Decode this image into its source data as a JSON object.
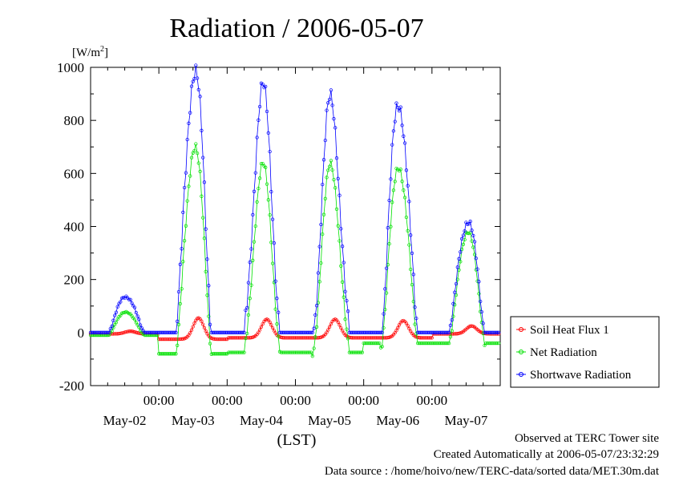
{
  "chart_data": {
    "type": "line",
    "title": "Radiation / 2006-05-07",
    "ylabel_unit": "[W/m",
    "ylabel_sup": "2",
    "ylabel_close": "]",
    "xlabel": "(LST)",
    "ylim": [
      -200,
      1000
    ],
    "yticks": [
      "1000",
      "800",
      "600",
      "400",
      "200",
      "0",
      "-200"
    ],
    "ytick_values": [
      1000,
      800,
      600,
      400,
      200,
      0,
      -200
    ],
    "xlim_days": [
      0,
      6
    ],
    "x_time_labels": [
      "00:00",
      "00:00",
      "00:00",
      "00:00",
      "00:00"
    ],
    "x_date_labels": [
      "May-02",
      "May-03",
      "May-04",
      "May-05",
      "May-06",
      "May-07"
    ],
    "grid": false,
    "legend_position": "bottom-right-outside",
    "series": [
      {
        "name": "Soil Heat Flux 1",
        "color": "#ff0000",
        "daily_peaks": [
          5,
          55,
          50,
          50,
          45,
          25
        ],
        "daily_troughs": [
          -5,
          -25,
          -20,
          -20,
          -20,
          -5
        ]
      },
      {
        "name": "Net Radiation",
        "color": "#00e000",
        "daily_peaks": [
          80,
          710,
          620,
          620,
          635,
          390
        ],
        "night_values": [
          -10,
          -80,
          -75,
          -75,
          -40,
          -40
        ]
      },
      {
        "name": "Shortwave Radiation",
        "color": "#0000ff",
        "daily_peaks": [
          140,
          1000,
          905,
          865,
          880,
          430
        ],
        "night_values": [
          0,
          0,
          0,
          0,
          0,
          0
        ]
      }
    ]
  },
  "footer": {
    "line1": "Observed at TERC Tower site",
    "line2": "Created Automatically at 2006-05-07/23:32:29",
    "line3": "Data source : /home/hoivo/new/TERC-data/sorted  data/MET.30m.dat"
  }
}
